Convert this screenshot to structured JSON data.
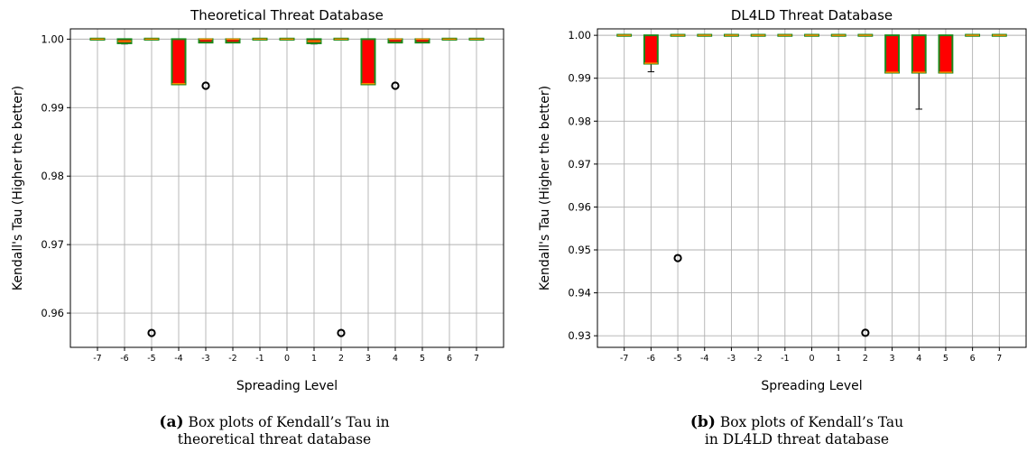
{
  "chart_data": [
    {
      "type": "box",
      "title": "Theoretical Threat Database",
      "xlabel": "Spreading Level",
      "ylabel": "Kendall's Tau (Higher the better)",
      "ylim": [
        0.955,
        1.0015
      ],
      "yticks": [
        "0.96",
        "0.97",
        "0.98",
        "0.99",
        "1.00"
      ],
      "grid": true,
      "box_fill": "#ff0000",
      "box_edge": "#1a8a1a",
      "median_color": "#ff8c00",
      "categories": [
        "-7",
        "-6",
        "-5",
        "-4",
        "-3",
        "-2",
        "-1",
        "0",
        "1",
        "2",
        "3",
        "4",
        "5",
        "6",
        "7"
      ],
      "boxes": [
        {
          "x": "-7",
          "q1": 1.0,
          "median": 1.0,
          "q3": 1.0,
          "whislo": 1.0,
          "whishi": 1.0,
          "fliers": []
        },
        {
          "x": "-6",
          "q1": 0.9994,
          "median": 0.9997,
          "q3": 1.0,
          "whislo": 0.9993,
          "whishi": 1.0,
          "fliers": []
        },
        {
          "x": "-5",
          "q1": 1.0,
          "median": 1.0,
          "q3": 1.0,
          "whislo": 1.0,
          "whishi": 1.0,
          "fliers": [
            0.9571
          ]
        },
        {
          "x": "-4",
          "q1": 0.9934,
          "median": 0.9935,
          "q3": 1.0,
          "whislo": 0.9934,
          "whishi": 1.0,
          "fliers": []
        },
        {
          "x": "-3",
          "q1": 0.9995,
          "median": 1.0,
          "q3": 1.0,
          "whislo": 0.9995,
          "whishi": 1.0,
          "fliers": [
            0.9932
          ]
        },
        {
          "x": "-2",
          "q1": 0.9995,
          "median": 1.0,
          "q3": 1.0,
          "whislo": 0.9995,
          "whishi": 1.0,
          "fliers": []
        },
        {
          "x": "-1",
          "q1": 1.0,
          "median": 1.0,
          "q3": 1.0,
          "whislo": 1.0,
          "whishi": 1.0,
          "fliers": []
        },
        {
          "x": "0",
          "q1": 1.0,
          "median": 1.0,
          "q3": 1.0,
          "whislo": 1.0,
          "whishi": 1.0,
          "fliers": []
        },
        {
          "x": "1",
          "q1": 0.9994,
          "median": 0.9997,
          "q3": 1.0,
          "whislo": 0.9993,
          "whishi": 1.0,
          "fliers": []
        },
        {
          "x": "2",
          "q1": 1.0,
          "median": 1.0,
          "q3": 1.0,
          "whislo": 1.0,
          "whishi": 1.0,
          "fliers": [
            0.9571
          ]
        },
        {
          "x": "3",
          "q1": 0.9934,
          "median": 0.9935,
          "q3": 1.0,
          "whislo": 0.9934,
          "whishi": 1.0,
          "fliers": []
        },
        {
          "x": "4",
          "q1": 0.9995,
          "median": 1.0,
          "q3": 1.0,
          "whislo": 0.9995,
          "whishi": 1.0,
          "fliers": [
            0.9932
          ]
        },
        {
          "x": "5",
          "q1": 0.9995,
          "median": 1.0,
          "q3": 1.0,
          "whislo": 0.9995,
          "whishi": 1.0,
          "fliers": []
        },
        {
          "x": "6",
          "q1": 1.0,
          "median": 1.0,
          "q3": 1.0,
          "whislo": 1.0,
          "whishi": 1.0,
          "fliers": []
        },
        {
          "x": "7",
          "q1": 1.0,
          "median": 1.0,
          "q3": 1.0,
          "whislo": 1.0,
          "whishi": 1.0,
          "fliers": []
        }
      ]
    },
    {
      "type": "box",
      "title": "DL4LD Threat Database",
      "xlabel": "Spreading Level",
      "ylabel": "Kendall's Tau (Higher the better)",
      "ylim": [
        0.9273,
        1.0015
      ],
      "yticks": [
        "0.93",
        "0.94",
        "0.95",
        "0.96",
        "0.97",
        "0.98",
        "0.99",
        "1.00"
      ],
      "grid": true,
      "box_fill": "#ff0000",
      "box_edge": "#1a8a1a",
      "median_color": "#ff8c00",
      "categories": [
        "-7",
        "-6",
        "-5",
        "-4",
        "-3",
        "-2",
        "-1",
        "0",
        "1",
        "2",
        "3",
        "4",
        "5",
        "6",
        "7"
      ],
      "boxes": [
        {
          "x": "-7",
          "q1": 1.0,
          "median": 1.0,
          "q3": 1.0,
          "whislo": 1.0,
          "whishi": 1.0,
          "fliers": []
        },
        {
          "x": "-6",
          "q1": 0.9934,
          "median": 0.9935,
          "q3": 1.0,
          "whislo": 0.9915,
          "whishi": 1.0,
          "fliers": []
        },
        {
          "x": "-5",
          "q1": 1.0,
          "median": 1.0,
          "q3": 1.0,
          "whislo": 1.0,
          "whishi": 1.0,
          "fliers": [
            0.9481
          ]
        },
        {
          "x": "-4",
          "q1": 1.0,
          "median": 1.0,
          "q3": 1.0,
          "whislo": 1.0,
          "whishi": 1.0,
          "fliers": []
        },
        {
          "x": "-3",
          "q1": 1.0,
          "median": 1.0,
          "q3": 1.0,
          "whislo": 1.0,
          "whishi": 1.0,
          "fliers": []
        },
        {
          "x": "-2",
          "q1": 1.0,
          "median": 1.0,
          "q3": 1.0,
          "whislo": 1.0,
          "whishi": 1.0,
          "fliers": []
        },
        {
          "x": "-1",
          "q1": 1.0,
          "median": 1.0,
          "q3": 1.0,
          "whislo": 1.0,
          "whishi": 1.0,
          "fliers": []
        },
        {
          "x": "0",
          "q1": 1.0,
          "median": 1.0,
          "q3": 1.0,
          "whislo": 1.0,
          "whishi": 1.0,
          "fliers": []
        },
        {
          "x": "1",
          "q1": 1.0,
          "median": 1.0,
          "q3": 1.0,
          "whislo": 1.0,
          "whishi": 1.0,
          "fliers": []
        },
        {
          "x": "2",
          "q1": 1.0,
          "median": 1.0,
          "q3": 1.0,
          "whislo": 1.0,
          "whishi": 1.0,
          "fliers": [
            0.9307
          ]
        },
        {
          "x": "3",
          "q1": 0.9913,
          "median": 0.9914,
          "q3": 1.0,
          "whislo": 0.9913,
          "whishi": 1.0,
          "fliers": []
        },
        {
          "x": "4",
          "q1": 0.9913,
          "median": 0.9914,
          "q3": 1.0,
          "whislo": 0.9828,
          "whishi": 1.0,
          "fliers": []
        },
        {
          "x": "5",
          "q1": 0.9913,
          "median": 0.9914,
          "q3": 1.0,
          "whislo": 0.9913,
          "whishi": 1.0,
          "fliers": []
        },
        {
          "x": "6",
          "q1": 1.0,
          "median": 1.0,
          "q3": 1.0,
          "whislo": 1.0,
          "whishi": 1.0,
          "fliers": []
        },
        {
          "x": "7",
          "q1": 1.0,
          "median": 1.0,
          "q3": 1.0,
          "whislo": 1.0,
          "whishi": 1.0,
          "fliers": []
        }
      ]
    }
  ],
  "captions": [
    {
      "label": "(a)",
      "line1": "Box plots of Kendall’s Tau in",
      "line2": "theoretical threat database"
    },
    {
      "label": "(b)",
      "line1": "Box plots of Kendall’s Tau",
      "line2": "in DL4LD threat database"
    }
  ]
}
